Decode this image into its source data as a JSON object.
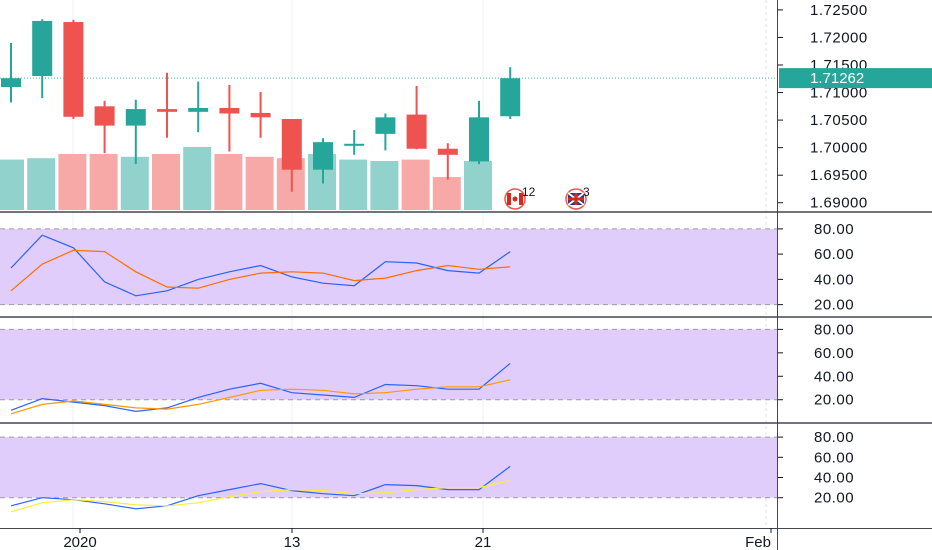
{
  "colors": {
    "up": "#26a69a",
    "down": "#ef5350",
    "vol_up": "#92d2cc",
    "vol_down": "#f7a9a7",
    "band": "#e1cdfb",
    "stoch_k": "#2962ff",
    "stoch_d": "#ff6d00",
    "stoch2_d": "#ff9800",
    "stoch3_d": "#ffeb3b",
    "last_price_bg": "#26a69a"
  },
  "chart_data": [
    {
      "type": "candlestick",
      "title": "",
      "ylim": [
        1.6885,
        1.7268
      ],
      "y_ticks": [
        "1.72500",
        "1.72000",
        "1.71500",
        "1.71000",
        "1.70500",
        "1.70000",
        "1.69500",
        "1.69000"
      ],
      "last_price": "1.71262",
      "x_labels": [
        "2020",
        "13",
        "21",
        "Feb"
      ],
      "candles": [
        {
          "o": 1.711,
          "h": 1.719,
          "l": 1.7082,
          "c": 1.7126
        },
        {
          "o": 1.713,
          "h": 1.7233,
          "l": 1.709,
          "c": 1.723
        },
        {
          "o": 1.7228,
          "h": 1.7232,
          "l": 1.7052,
          "c": 1.7056
        },
        {
          "o": 1.7075,
          "h": 1.7085,
          "l": 1.699,
          "c": 1.704
        },
        {
          "o": 1.704,
          "h": 1.7087,
          "l": 1.697,
          "c": 1.707
        },
        {
          "o": 1.707,
          "h": 1.7136,
          "l": 1.7018,
          "c": 1.7065
        },
        {
          "o": 1.7065,
          "h": 1.712,
          "l": 1.7028,
          "c": 1.7072
        },
        {
          "o": 1.7072,
          "h": 1.7114,
          "l": 1.6993,
          "c": 1.7062
        },
        {
          "o": 1.7063,
          "h": 1.7101,
          "l": 1.7018,
          "c": 1.7055
        },
        {
          "o": 1.7052,
          "h": 1.7052,
          "l": 1.692,
          "c": 1.696
        },
        {
          "o": 1.696,
          "h": 1.7017,
          "l": 1.6935,
          "c": 1.701
        },
        {
          "o": 1.7005,
          "h": 1.7032,
          "l": 1.6987,
          "c": 1.7007
        },
        {
          "o": 1.7025,
          "h": 1.7062,
          "l": 1.6995,
          "c": 1.7055
        },
        {
          "o": 1.706,
          "h": 1.7112,
          "l": 1.6997,
          "c": 1.6998
        },
        {
          "o": 1.6998,
          "h": 1.7008,
          "l": 1.6942,
          "c": 1.6987
        },
        {
          "o": 1.6975,
          "h": 1.7085,
          "l": 1.697,
          "c": 1.7055
        },
        {
          "o": 1.7057,
          "h": 1.7146,
          "l": 1.7052,
          "c": 1.7126
        }
      ],
      "volume": [
        0.72,
        0.74,
        0.8,
        0.8,
        0.76,
        0.8,
        0.9,
        0.8,
        0.76,
        0.74,
        0.8,
        0.72,
        0.7,
        0.72,
        0.47,
        0.7,
        0
      ],
      "events": [
        {
          "flag": "CA",
          "count": "12"
        },
        {
          "flag": "GB",
          "count": "3"
        }
      ]
    },
    {
      "type": "line",
      "ylim": [
        11,
        91
      ],
      "y_ticks": [
        "80.00",
        "60.00",
        "40.00",
        "20.00"
      ],
      "band": [
        20,
        80
      ],
      "series": [
        {
          "key": "k",
          "values": [
            49,
            75,
            65,
            38,
            27,
            31,
            40,
            46,
            51,
            42,
            37,
            35,
            54,
            53,
            47,
            45,
            62
          ]
        },
        {
          "key": "d",
          "values": [
            31,
            52,
            63,
            62,
            46,
            34,
            33,
            40,
            45,
            46,
            45,
            39,
            41,
            47,
            51,
            48,
            50
          ]
        }
      ]
    },
    {
      "type": "line",
      "ylim": [
        1,
        88
      ],
      "y_ticks": [
        "80.00",
        "60.00",
        "40.00",
        "20.00"
      ],
      "band": [
        20,
        80
      ],
      "series": [
        {
          "key": "k",
          "values": [
            11,
            21,
            18,
            15,
            10,
            13,
            22,
            29,
            34,
            26,
            24,
            22,
            33,
            32,
            29,
            29,
            51
          ]
        },
        {
          "key": "d",
          "values": [
            8,
            16,
            19,
            16,
            13,
            12,
            16,
            22,
            28,
            29,
            28,
            25,
            26,
            29,
            31,
            31,
            37
          ]
        }
      ]
    },
    {
      "type": "line",
      "ylim": [
        -10,
        91
      ],
      "y_ticks": [
        "80.00",
        "60.00",
        "40.00",
        "20.00"
      ],
      "band": [
        20,
        80
      ],
      "series": [
        {
          "key": "k",
          "values": [
            12,
            20,
            18,
            14,
            9,
            12,
            22,
            28,
            34,
            27,
            24,
            22,
            33,
            32,
            28,
            28,
            51
          ]
        },
        {
          "key": "d",
          "values": [
            6,
            15,
            18,
            16,
            13,
            12,
            15,
            21,
            26,
            28,
            27,
            24,
            25,
            28,
            30,
            30,
            37
          ]
        }
      ]
    }
  ]
}
